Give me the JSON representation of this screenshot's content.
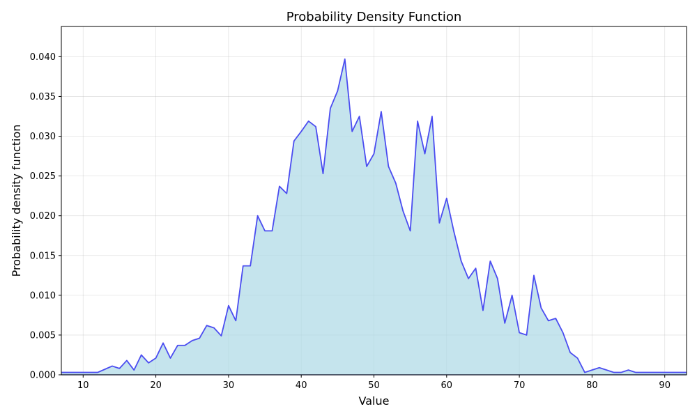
{
  "chart_data": {
    "type": "area",
    "title": "Probability Density Function",
    "xlabel": "Value",
    "ylabel": "Probability density function",
    "xlim": [
      7,
      93
    ],
    "ylim": [
      0,
      0.0438
    ],
    "x_ticks": [
      10,
      20,
      30,
      40,
      50,
      60,
      70,
      80,
      90
    ],
    "x_tick_labels": [
      "10",
      "20",
      "30",
      "40",
      "50",
      "60",
      "70",
      "80",
      "90"
    ],
    "y_ticks": [
      0,
      0.005,
      0.01,
      0.015,
      0.02,
      0.025,
      0.03,
      0.035,
      0.04
    ],
    "y_tick_labels": [
      "0.000",
      "0.005",
      "0.010",
      "0.015",
      "0.020",
      "0.025",
      "0.030",
      "0.035",
      "0.040"
    ],
    "grid": true,
    "line_color": "#3a3af0",
    "fill_color": "#add8e6",
    "x": [
      7,
      8,
      9,
      10,
      11,
      12,
      13,
      14,
      15,
      16,
      17,
      18,
      19,
      20,
      21,
      22,
      23,
      24,
      25,
      26,
      27,
      28,
      29,
      30,
      31,
      32,
      33,
      34,
      35,
      36,
      37,
      38,
      39,
      40,
      41,
      42,
      43,
      44,
      45,
      46,
      47,
      48,
      49,
      50,
      51,
      52,
      53,
      54,
      55,
      56,
      57,
      58,
      59,
      60,
      61,
      62,
      63,
      64,
      65,
      66,
      67,
      68,
      69,
      70,
      71,
      72,
      73,
      74,
      75,
      76,
      77,
      78,
      79,
      80,
      81,
      82,
      83,
      84,
      85,
      86,
      87,
      88,
      89,
      90,
      91,
      92,
      93
    ],
    "y": [
      0.0003,
      0.0003,
      0.0003,
      0.0003,
      0.0003,
      0.0003,
      0.0007,
      0.0011,
      0.0008,
      0.0018,
      0.0006,
      0.0025,
      0.0015,
      0.0021,
      0.004,
      0.0021,
      0.0037,
      0.0037,
      0.0043,
      0.0046,
      0.0062,
      0.0059,
      0.0049,
      0.0087,
      0.0068,
      0.0137,
      0.0137,
      0.02,
      0.0181,
      0.0181,
      0.0237,
      0.0228,
      0.0294,
      0.0306,
      0.0319,
      0.0312,
      0.0253,
      0.0335,
      0.0357,
      0.0397,
      0.0306,
      0.0325,
      0.0262,
      0.0278,
      0.0331,
      0.0262,
      0.0241,
      0.0206,
      0.0181,
      0.0319,
      0.0278,
      0.0325,
      0.0191,
      0.0222,
      0.018,
      0.0143,
      0.0121,
      0.0134,
      0.0081,
      0.0143,
      0.0121,
      0.0065,
      0.01,
      0.0053,
      0.005,
      0.0125,
      0.0084,
      0.0068,
      0.0071,
      0.0053,
      0.0028,
      0.0021,
      0.0003,
      0.0006,
      0.0009,
      0.0006,
      0.0003,
      0.0003,
      0.0006,
      0.0003,
      0.0003,
      0.0003,
      0.0003,
      0.0003,
      0.0003,
      0.0003,
      0.0003
    ]
  }
}
